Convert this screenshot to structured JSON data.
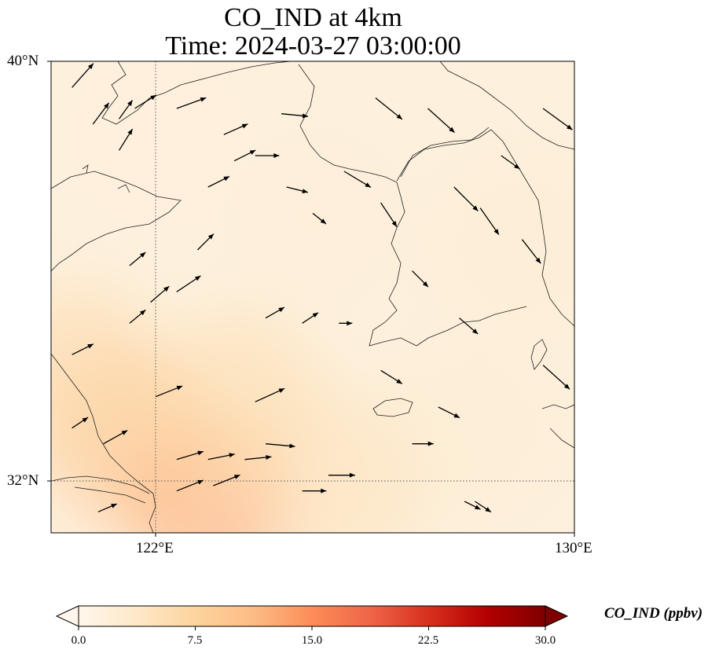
{
  "title": {
    "line1": "CO_IND at 4km",
    "line2": "Time: 2024-03-27 03:00:00"
  },
  "axes": {
    "lat_labels": [
      "40°N",
      "32°N"
    ],
    "lon_labels": [
      "122°E",
      "130°E"
    ],
    "lat_range": [
      31,
      40
    ],
    "lon_range": [
      120,
      130
    ],
    "gridlines": {
      "lon": [
        122
      ],
      "lat": [
        32
      ],
      "style": "dotted"
    }
  },
  "colorbar": {
    "label": "CO_IND (ppbv)",
    "ticks": [
      "0.0",
      "7.5",
      "15.0",
      "22.5",
      "30.0"
    ],
    "range": [
      0,
      30
    ],
    "colormap": "OrRd",
    "colors": [
      "#fff7ec",
      "#fee8c8",
      "#fdd49e",
      "#fdbb84",
      "#fc8d59",
      "#ef6548",
      "#d7301f",
      "#b30000",
      "#7f0000"
    ],
    "extend": "both"
  },
  "chart_data": {
    "type": "heatmap",
    "title": "CO_IND at 4km",
    "subtitle": "Time: 2024-03-27 03:00:00",
    "variable": "CO_IND",
    "units": "ppbv",
    "field_description_points": [
      {
        "lon": 123.0,
        "lat": 31.6,
        "value": 12.5
      },
      {
        "lon": 121.5,
        "lat": 32.8,
        "value": 10.0
      },
      {
        "lon": 120.5,
        "lat": 34.0,
        "value": 6.5
      },
      {
        "lon": 123.5,
        "lat": 33.5,
        "value": 6.0
      },
      {
        "lon": 125.5,
        "lat": 32.0,
        "value": 5.0
      },
      {
        "lon": 128.0,
        "lat": 33.0,
        "value": 2.5
      },
      {
        "lon": 125.0,
        "lat": 37.0,
        "value": 2.0
      },
      {
        "lon": 122.0,
        "lat": 38.5,
        "value": 1.5
      },
      {
        "lon": 129.0,
        "lat": 36.5,
        "value": 2.5
      }
    ],
    "wind_vectors": [
      [
        120.4,
        39.5,
        0.8,
        0.9
      ],
      [
        120.8,
        38.8,
        0.6,
        0.8
      ],
      [
        121.3,
        38.3,
        0.5,
        0.8
      ],
      [
        121.6,
        39.1,
        0.8,
        0.5
      ],
      [
        121.3,
        38.9,
        0.5,
        0.7
      ],
      [
        122.4,
        39.1,
        1.1,
        0.4
      ],
      [
        123.3,
        38.6,
        0.9,
        0.4
      ],
      [
        123.5,
        38.1,
        0.8,
        0.4
      ],
      [
        123.0,
        37.6,
        0.8,
        0.4
      ],
      [
        124.4,
        39.0,
        1.0,
        -0.1
      ],
      [
        123.9,
        38.2,
        0.9,
        0.0
      ],
      [
        124.5,
        37.6,
        0.8,
        -0.2
      ],
      [
        125.0,
        37.1,
        0.5,
        -0.4
      ],
      [
        125.6,
        37.9,
        1.0,
        -0.6
      ],
      [
        126.2,
        39.3,
        1.0,
        -0.8
      ],
      [
        127.2,
        39.1,
        1.0,
        -0.9
      ],
      [
        126.3,
        37.3,
        0.6,
        -0.9
      ],
      [
        127.7,
        37.6,
        0.9,
        -0.9
      ],
      [
        129.4,
        39.1,
        1.1,
        -0.8
      ],
      [
        128.6,
        38.2,
        0.7,
        -0.5
      ],
      [
        128.2,
        37.2,
        0.7,
        -1.0
      ],
      [
        129.0,
        36.6,
        0.7,
        -0.9
      ],
      [
        126.9,
        36.0,
        0.6,
        -0.6
      ],
      [
        127.8,
        35.1,
        0.7,
        -0.6
      ],
      [
        129.4,
        34.2,
        1.0,
        -0.9
      ],
      [
        126.3,
        34.1,
        0.8,
        -0.5
      ],
      [
        127.4,
        33.4,
        0.8,
        -0.4
      ],
      [
        126.9,
        32.7,
        0.8,
        0.0
      ],
      [
        128.1,
        31.6,
        0.6,
        -0.4
      ],
      [
        127.9,
        31.6,
        0.6,
        -0.3
      ],
      [
        125.3,
        32.1,
        1.0,
        0.0
      ],
      [
        124.8,
        31.8,
        0.9,
        0.0
      ],
      [
        124.1,
        32.7,
        1.1,
        -0.1
      ],
      [
        123.9,
        33.5,
        1.1,
        0.5
      ],
      [
        123.1,
        31.9,
        1.0,
        0.4
      ],
      [
        122.4,
        31.8,
        1.0,
        0.4
      ],
      [
        121.0,
        32.7,
        0.9,
        0.5
      ],
      [
        120.4,
        33.0,
        0.6,
        0.4
      ],
      [
        120.9,
        31.4,
        0.7,
        0.3
      ],
      [
        122.0,
        33.6,
        1.0,
        0.4
      ],
      [
        122.4,
        32.4,
        1.0,
        0.3
      ],
      [
        123.0,
        32.4,
        1.0,
        0.2
      ],
      [
        123.7,
        32.4,
        1.0,
        0.1
      ],
      [
        120.4,
        34.4,
        0.8,
        0.4
      ],
      [
        121.5,
        35.0,
        0.6,
        0.5
      ],
      [
        121.9,
        35.4,
        0.7,
        0.6
      ],
      [
        122.4,
        35.6,
        0.9,
        0.6
      ],
      [
        124.1,
        35.1,
        0.7,
        0.4
      ],
      [
        124.8,
        35.0,
        0.6,
        0.4
      ],
      [
        125.5,
        35.0,
        0.5,
        0.0
      ],
      [
        121.5,
        36.1,
        0.6,
        0.5
      ],
      [
        122.8,
        36.4,
        0.6,
        0.6
      ]
    ]
  }
}
